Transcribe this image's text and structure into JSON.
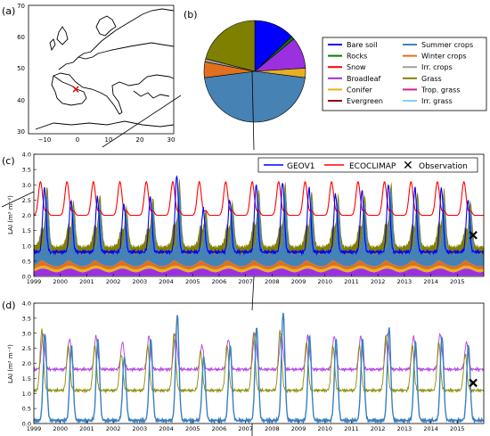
{
  "panels": {
    "a": {
      "label": "(a)",
      "y_ticks": [
        "70",
        "60",
        "50",
        "40",
        "30"
      ],
      "x_ticks": [
        "−10",
        "0",
        "10",
        "20",
        "30"
      ],
      "site_marker": "red-cross"
    },
    "b": {
      "label": "(b)"
    },
    "c": {
      "label": "(c)",
      "ylabel": "LAI (m² m⁻²)",
      "y_ticks": [
        "0.0",
        "0.5",
        "1.0",
        "1.5",
        "2.0",
        "2.5",
        "3.0",
        "3.5",
        "4.0"
      ],
      "legend": [
        {
          "label": "GEOV1",
          "color": "#0000ff",
          "kind": "line"
        },
        {
          "label": "ECOCLIMAP",
          "color": "#ff0000",
          "kind": "line"
        },
        {
          "label": "Observation",
          "color": "#000000",
          "kind": "cross"
        }
      ]
    },
    "d": {
      "label": "(d)",
      "ylabel": "LAI (m² m⁻²)",
      "y_ticks": [
        "0.0",
        "0.5",
        "1.0",
        "1.5",
        "2.0",
        "2.5",
        "3.0",
        "3.5",
        "4.0"
      ]
    }
  },
  "years": [
    "1999",
    "2000",
    "2001",
    "2002",
    "2003",
    "2004",
    "2005",
    "2006",
    "2007",
    "2008",
    "2009",
    "2010",
    "2011",
    "2012",
    "2013",
    "2014",
    "2015"
  ],
  "cover_legend": [
    {
      "label": "Bare soil",
      "color": "#0000ff"
    },
    {
      "label": "Rocks",
      "color": "#008000"
    },
    {
      "label": "Snow",
      "color": "#ff0000"
    },
    {
      "label": "Broadleaf",
      "color": "#9b30e0"
    },
    {
      "label": "Conifer",
      "color": "#e8b020"
    },
    {
      "label": "Evergreen",
      "color": "#8b0000"
    },
    {
      "label": "Summer crops",
      "color": "#4682b4"
    },
    {
      "label": "Winter crops",
      "color": "#e07020"
    },
    {
      "label": "Irr. crops",
      "color": "#a0a0a0"
    },
    {
      "label": "Grass",
      "color": "#808000"
    },
    {
      "label": "Trop. grass",
      "color": "#d0208e"
    },
    {
      "label": "Irr. grass",
      "color": "#87cefa"
    }
  ],
  "chart_data": [
    {
      "panel": "b",
      "type": "pie",
      "slices": [
        {
          "label": "Bare soil",
          "value": 13
        },
        {
          "label": "Rocks",
          "value": 1
        },
        {
          "label": "Broadleaf",
          "value": 10
        },
        {
          "label": "Conifer",
          "value": 3
        },
        {
          "label": "Summer crops",
          "value": 46
        },
        {
          "label": "Winter crops",
          "value": 5
        },
        {
          "label": "Irr. crops",
          "value": 1
        },
        {
          "label": "Grass",
          "value": 21
        }
      ]
    },
    {
      "panel": "c",
      "type": "area",
      "x_range": [
        1999.0,
        2016.0
      ],
      "ylim": [
        0,
        4
      ],
      "summer_crops_peak": [
        2.3,
        1.8,
        2.0,
        1.6,
        1.9,
        2.5,
        1.5,
        1.8,
        2.2,
        2.4,
        2.1,
        2.0,
        2.0,
        2.4,
        2.1,
        2.2,
        1.8
      ],
      "grass_peak": [
        0.5,
        0.6,
        0.6,
        0.5,
        0.5,
        0.7,
        0.6,
        0.6,
        0.7,
        0.6,
        0.6,
        0.6,
        0.6,
        0.7,
        0.6,
        0.7,
        0.5
      ],
      "ecoclimap": {
        "min": 2.0,
        "max": 3.1,
        "peak_phase": 0.25
      },
      "geov1_peak": [
        2.9,
        2.5,
        2.6,
        2.4,
        2.6,
        3.3,
        2.2,
        2.5,
        3.0,
        3.1,
        2.9,
        2.7,
        2.8,
        3.0,
        2.9,
        2.9,
        2.5
      ],
      "geov1_base": 0.8,
      "observation": {
        "x": 2015.6,
        "y": 1.35
      }
    },
    {
      "panel": "d",
      "type": "line",
      "x_range": [
        1999.0,
        2016.0
      ],
      "ylim": [
        0,
        4
      ],
      "series": [
        {
          "color": "#b040e0",
          "base": 1.8,
          "peaks": [
            3.0,
            2.8,
            2.9,
            2.7,
            2.9,
            3.0,
            2.6,
            2.8,
            3.0,
            3.0,
            2.9,
            2.9,
            2.9,
            3.0,
            2.9,
            3.0,
            2.7
          ]
        },
        {
          "color": "#8a8a00",
          "base": 1.1,
          "peaks": [
            3.1,
            2.6,
            2.6,
            2.3,
            2.6,
            3.0,
            2.4,
            2.6,
            3.0,
            3.1,
            2.7,
            2.6,
            2.6,
            2.9,
            2.6,
            2.7,
            2.3
          ]
        },
        {
          "color": "#3a7fc0",
          "base": 0.1,
          "peaks": [
            3.0,
            2.6,
            2.8,
            2.2,
            2.8,
            3.6,
            2.2,
            2.6,
            3.2,
            3.7,
            2.9,
            2.8,
            2.8,
            3.2,
            2.7,
            2.9,
            2.6
          ]
        }
      ],
      "observation": {
        "x": 2015.6,
        "y": 1.35
      }
    }
  ]
}
